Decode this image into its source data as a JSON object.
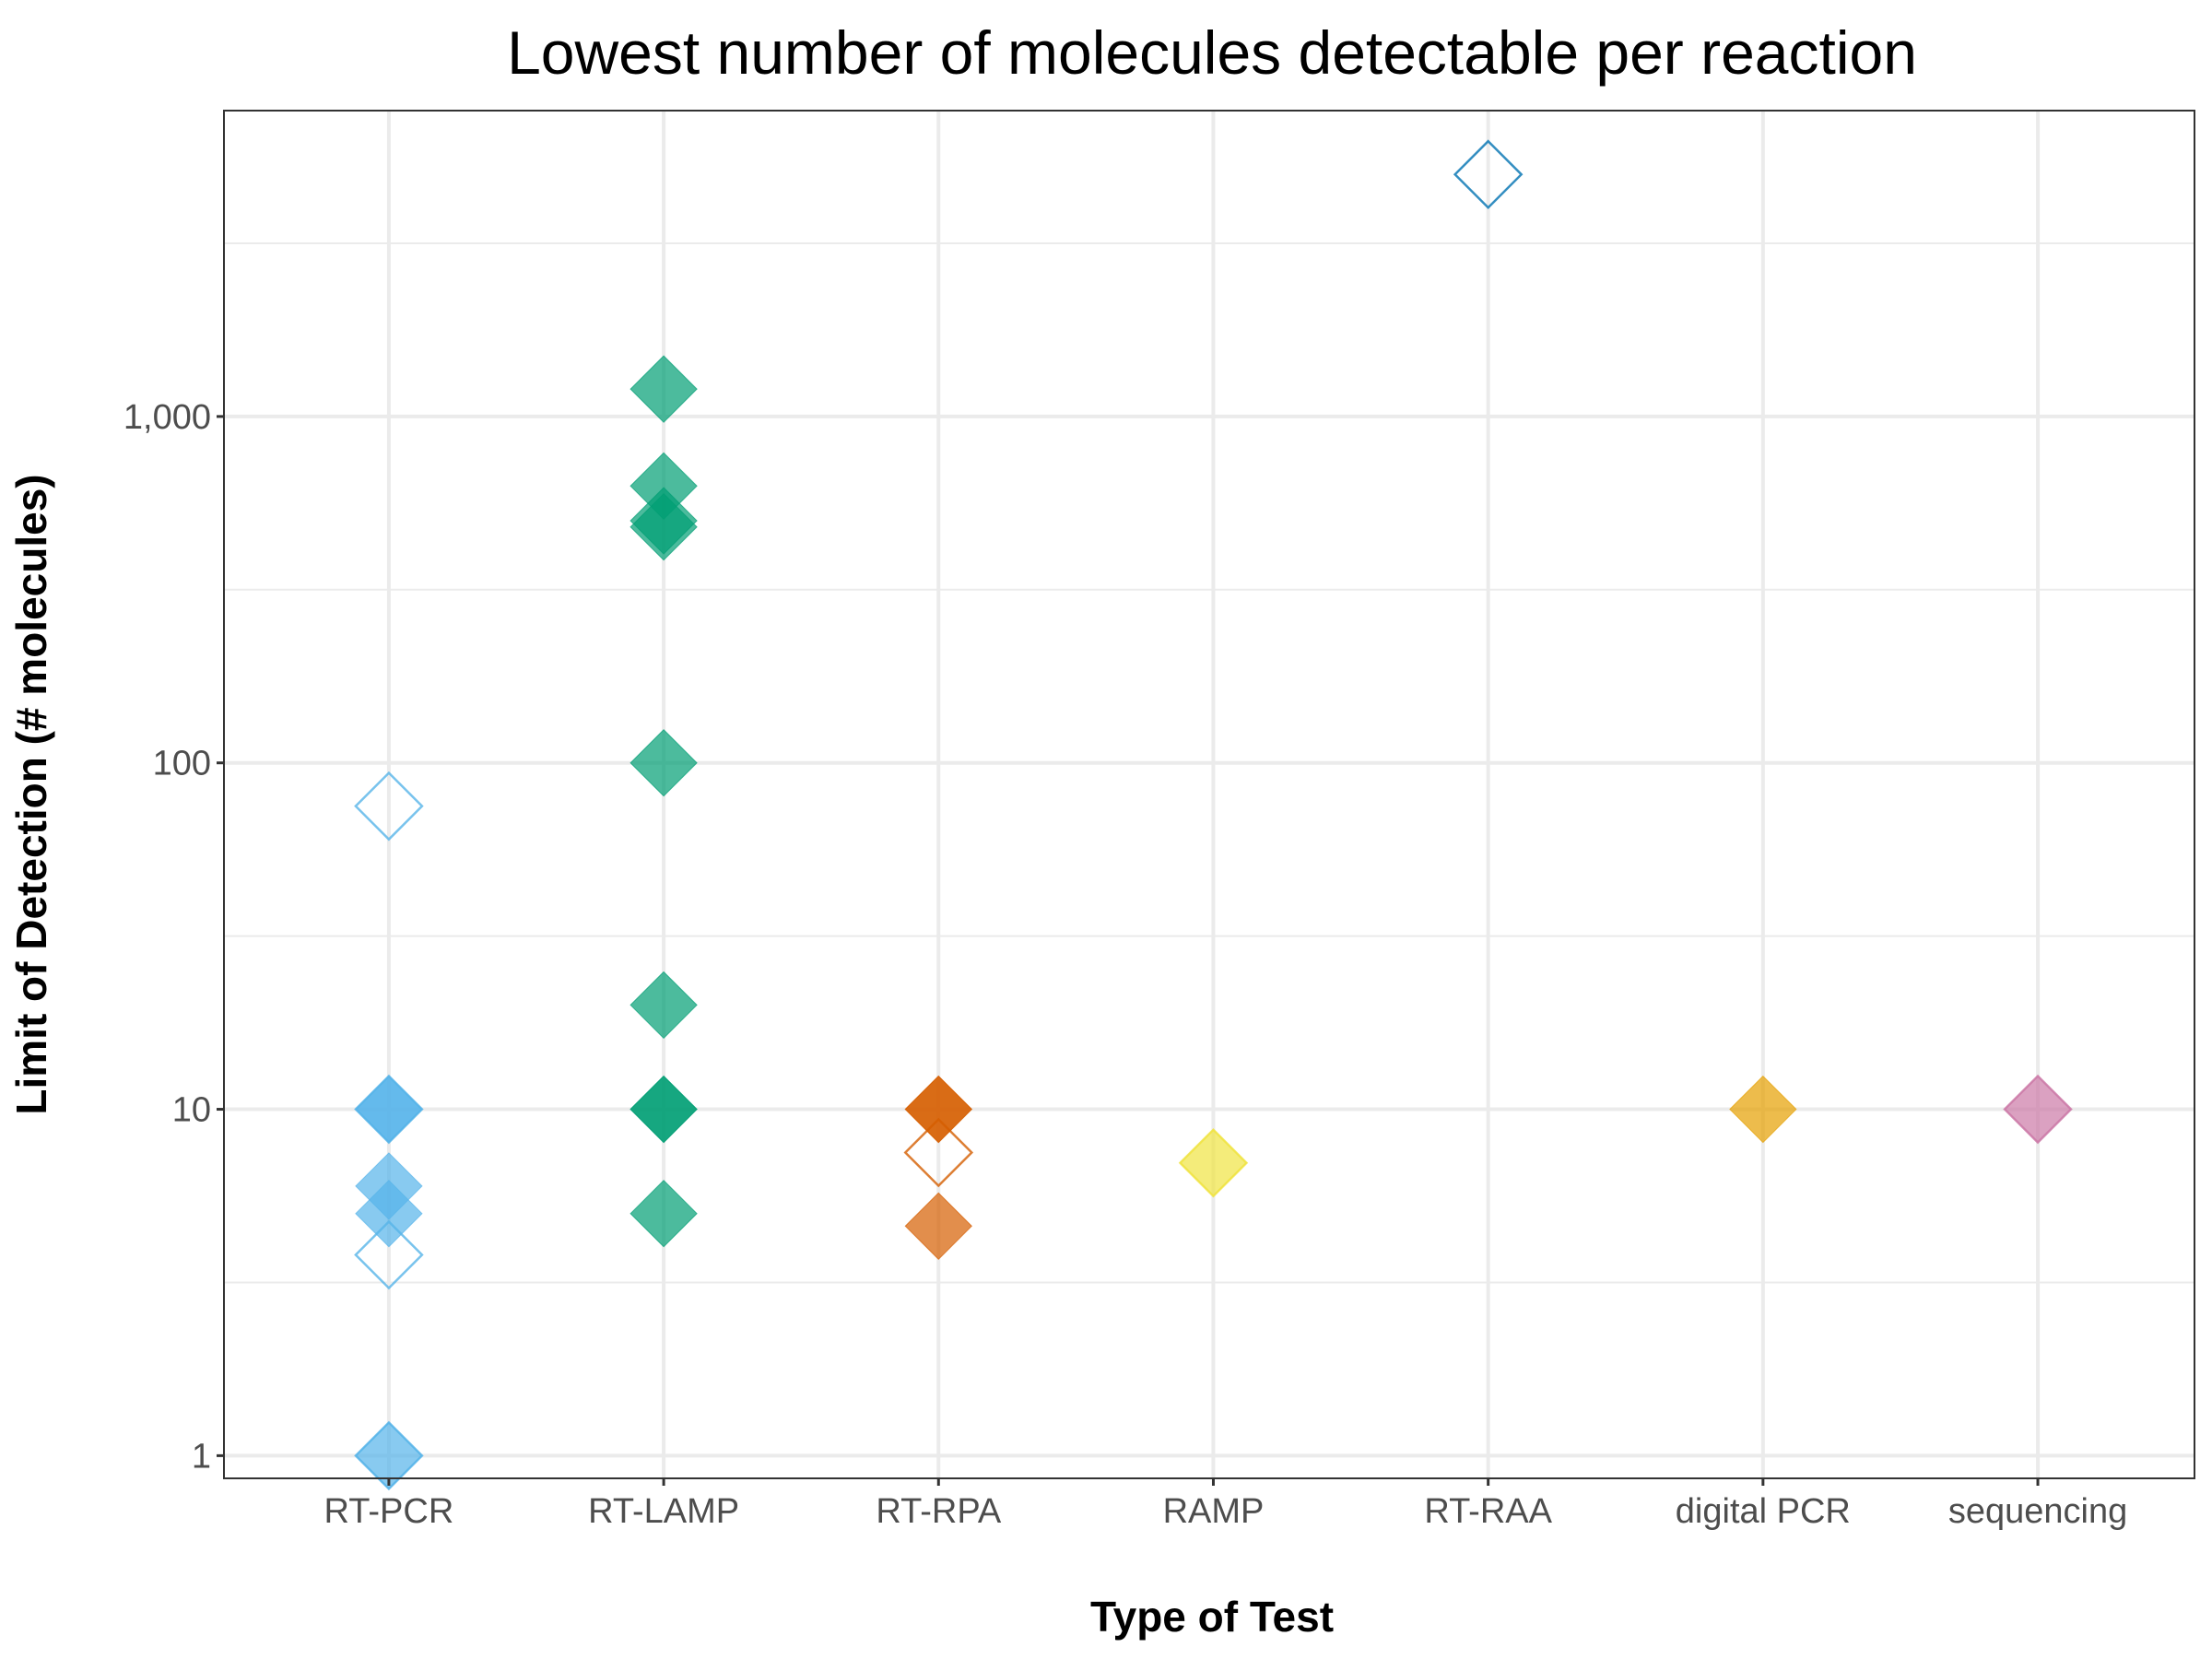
{
  "chart_data": {
    "type": "scatter",
    "title": "Lowest number of molecules detectable per reaction",
    "xlabel": "Type of Test",
    "ylabel": "Limit of Detection (# molecules)",
    "y_scale": "log10",
    "ylim": [
      0.86,
      7640
    ],
    "grid": true,
    "legend": "none",
    "categories": [
      "RT-PCR",
      "RT-LAMP",
      "RT-RPA",
      "RAMP",
      "RT-RAA",
      "digital PCR",
      "sequencing"
    ],
    "y_ticks": [
      1,
      10,
      100,
      1000
    ],
    "y_tick_labels": [
      "1",
      "10",
      "100",
      "1,000"
    ],
    "marker": "diamond",
    "colors": {
      "RT-PCR": "#56B4E9",
      "RT-LAMP": "#009E73",
      "RT-RPA": "#D55E00",
      "RAMP": "#F0E442",
      "RT-RAA": "#0072B2",
      "digital PCR": "#E69F00",
      "sequencing": "#CC79A7"
    },
    "points": [
      {
        "category": "RT-PCR",
        "y": 75,
        "filled": false
      },
      {
        "category": "RT-PCR",
        "y": 10,
        "filled": true
      },
      {
        "category": "RT-PCR",
        "y": 10,
        "filled": true
      },
      {
        "category": "RT-PCR",
        "y": 10,
        "filled": false
      },
      {
        "category": "RT-PCR",
        "y": 6,
        "filled": true
      },
      {
        "category": "RT-PCR",
        "y": 5,
        "filled": true
      },
      {
        "category": "RT-PCR",
        "y": 3.8,
        "filled": false
      },
      {
        "category": "RT-PCR",
        "y": 1,
        "filled": true
      },
      {
        "category": "RT-PCR",
        "y": 1,
        "filled": false
      },
      {
        "category": "RT-LAMP",
        "y": 1200,
        "filled": true
      },
      {
        "category": "RT-LAMP",
        "y": 630,
        "filled": true
      },
      {
        "category": "RT-LAMP",
        "y": 500,
        "filled": true
      },
      {
        "category": "RT-LAMP",
        "y": 480,
        "filled": true
      },
      {
        "category": "RT-LAMP",
        "y": 100,
        "filled": true
      },
      {
        "category": "RT-LAMP",
        "y": 20,
        "filled": true
      },
      {
        "category": "RT-LAMP",
        "y": 10,
        "filled": true
      },
      {
        "category": "RT-LAMP",
        "y": 10,
        "filled": true
      },
      {
        "category": "RT-LAMP",
        "y": 5,
        "filled": true
      },
      {
        "category": "RT-RPA",
        "y": 10,
        "filled": true
      },
      {
        "category": "RT-RPA",
        "y": 10,
        "filled": true
      },
      {
        "category": "RT-RPA",
        "y": 7.5,
        "filled": false
      },
      {
        "category": "RT-RPA",
        "y": 4.6,
        "filled": true
      },
      {
        "category": "RAMP",
        "y": 7,
        "filled": true
      },
      {
        "category": "RAMP",
        "y": 7,
        "filled": false
      },
      {
        "category": "RT-RAA",
        "y": 5000,
        "filled": false
      },
      {
        "category": "digital PCR",
        "y": 10,
        "filled": true
      },
      {
        "category": "sequencing",
        "y": 10,
        "filled": true
      },
      {
        "category": "sequencing",
        "y": 10,
        "filled": false
      }
    ]
  }
}
